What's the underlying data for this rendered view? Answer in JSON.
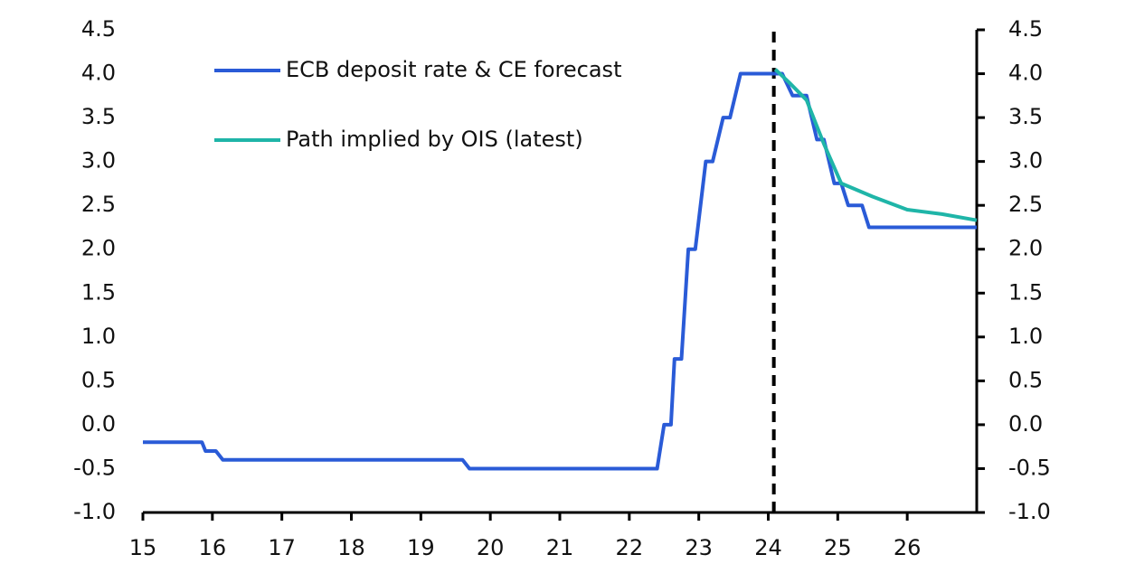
{
  "chart_data": {
    "type": "line",
    "xlim": [
      15,
      27
    ],
    "xticks": [
      15,
      16,
      17,
      18,
      19,
      20,
      21,
      22,
      23,
      24,
      25,
      26
    ],
    "ylim": [
      -1,
      4.5
    ],
    "yticks": [
      {
        "value": -1,
        "label": "-1.0"
      },
      -0.5,
      {
        "value": 0,
        "label": "0.0"
      },
      0.5,
      {
        "value": 1,
        "label": "1.0"
      },
      1.5,
      {
        "value": 2,
        "label": "2.0"
      },
      2.5,
      {
        "value": 3,
        "label": "3.0"
      },
      3.5,
      {
        "value": 4,
        "label": "4.0"
      },
      4.5
    ],
    "y2lim": [
      -1,
      4.5
    ],
    "y2ticks": [
      {
        "value": -1,
        "label": "-1.0"
      },
      -0.5,
      {
        "value": 0,
        "label": "0.0"
      },
      0.5,
      {
        "value": 1,
        "label": "1.0"
      },
      1.5,
      {
        "value": 2,
        "label": "2.0"
      },
      2.5,
      {
        "value": 3,
        "label": "3.0"
      },
      3.5,
      {
        "value": 4,
        "label": "4.0"
      },
      4.5
    ],
    "vline_x": 24.08,
    "series": [
      {
        "name": "ECB deposit rate & CE forecast",
        "color": "#2a5bd7",
        "x": [
          15.0,
          15.85,
          15.9,
          16.05,
          16.15,
          19.6,
          19.7,
          22.4,
          22.5,
          22.6,
          22.65,
          22.75,
          22.85,
          22.95,
          23.1,
          23.2,
          23.35,
          23.45,
          23.6,
          24.2,
          24.35,
          24.55,
          24.7,
          24.8,
          24.95,
          25.05,
          25.15,
          25.35,
          25.45,
          27.0
        ],
        "values": [
          -0.2,
          -0.2,
          -0.3,
          -0.3,
          -0.4,
          -0.4,
          -0.5,
          -0.5,
          0.0,
          0.0,
          0.75,
          0.75,
          2.0,
          2.0,
          3.0,
          3.0,
          3.5,
          3.5,
          4.0,
          4.0,
          3.75,
          3.75,
          3.25,
          3.25,
          2.75,
          2.75,
          2.5,
          2.5,
          2.25,
          2.25
        ]
      },
      {
        "name": "Path implied by OIS (latest)",
        "color": "#1fb5a8",
        "x": [
          24.1,
          24.3,
          24.55,
          24.8,
          25.05,
          25.5,
          26.0,
          26.5,
          27.0
        ],
        "values": [
          4.05,
          3.9,
          3.7,
          3.2,
          2.75,
          2.6,
          2.45,
          2.4,
          2.33
        ]
      }
    ]
  }
}
